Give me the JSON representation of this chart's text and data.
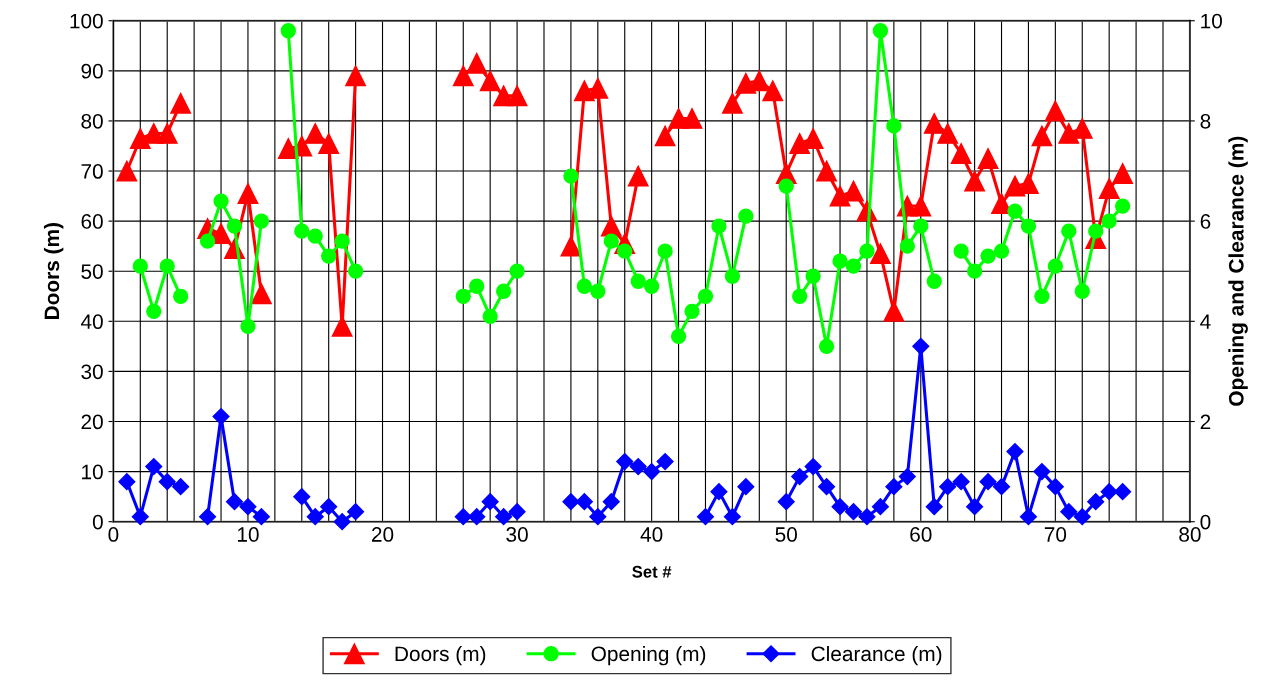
{
  "chart_data": {
    "type": "line",
    "xlabel": "Set #",
    "ylabel": "Doors (m)",
    "y2label": "Opening and Clearance (m)",
    "x": [
      1,
      2,
      3,
      4,
      5,
      6,
      7,
      8,
      9,
      10,
      11,
      12,
      13,
      14,
      15,
      16,
      17,
      18,
      19,
      20,
      21,
      22,
      23,
      24,
      25,
      26,
      27,
      28,
      29,
      30,
      31,
      32,
      33,
      34,
      35,
      36,
      37,
      38,
      39,
      40,
      41,
      42,
      43,
      44,
      45,
      46,
      47,
      48,
      49,
      50,
      51,
      52,
      53,
      54,
      55,
      56,
      57,
      58,
      59,
      60,
      61,
      62,
      63,
      64,
      65,
      66,
      67,
      68,
      69,
      70,
      71,
      72,
      73,
      74,
      75
    ],
    "series": [
      {
        "name": "Doors (m)",
        "color": "#ff0000",
        "marker": "triangle",
        "values": [
          70,
          76.5,
          77.5,
          77.5,
          83.5,
          null,
          58.5,
          57.5,
          54.5,
          65.5,
          45.5,
          null,
          74.5,
          75,
          77.5,
          75.5,
          39,
          89,
          null,
          null,
          null,
          null,
          null,
          null,
          null,
          89,
          91.5,
          88,
          85,
          85,
          null,
          null,
          null,
          55,
          86,
          86.5,
          59,
          55.5,
          69,
          null,
          77,
          80.5,
          80.5,
          null,
          null,
          83.5,
          87.5,
          88,
          86,
          69.5,
          75.5,
          76.5,
          70,
          65,
          66,
          62,
          53.5,
          42,
          63,
          63,
          79.5,
          77.5,
          73.5,
          68,
          72.5,
          63.5,
          67,
          67.5,
          77,
          82,
          77.5,
          78.5,
          56.5,
          66.5,
          69.5
        ]
      },
      {
        "name": "Opening (m)",
        "color": "#00ff00",
        "marker": "circle",
        "axis": "y2",
        "values": [
          null,
          5.1,
          4.2,
          5.1,
          4.5,
          null,
          5.6,
          6.4,
          5.9,
          3.9,
          6.0,
          null,
          9.8,
          5.8,
          5.7,
          5.3,
          5.6,
          5.0,
          null,
          null,
          null,
          null,
          null,
          null,
          null,
          4.5,
          4.7,
          4.1,
          4.6,
          5.0,
          null,
          null,
          null,
          6.9,
          4.7,
          4.6,
          5.6,
          5.4,
          4.8,
          4.7,
          5.4,
          3.7,
          4.2,
          4.5,
          5.9,
          4.9,
          6.1,
          null,
          null,
          6.7,
          4.5,
          4.9,
          3.5,
          5.2,
          5.1,
          5.4,
          9.8,
          7.9,
          5.5,
          5.9,
          4.8,
          null,
          5.4,
          5.0,
          5.3,
          5.4,
          6.2,
          5.9,
          4.5,
          5.1,
          5.8,
          4.6,
          5.8,
          6.0,
          6.3
        ]
      },
      {
        "name": "Clearance (m)",
        "color": "#0000ff",
        "marker": "diamond",
        "axis": "y2",
        "values": [
          0.8,
          0.1,
          1.1,
          0.8,
          0.7,
          null,
          0.1,
          2.1,
          0.4,
          0.3,
          0.1,
          null,
          null,
          0.5,
          0.1,
          0.3,
          0.0,
          0.2,
          null,
          null,
          null,
          null,
          null,
          null,
          null,
          0.1,
          0.1,
          0.4,
          0.1,
          0.2,
          null,
          null,
          null,
          0.4,
          0.4,
          0.1,
          0.4,
          1.2,
          1.1,
          1.0,
          1.2,
          null,
          null,
          0.1,
          0.6,
          0.1,
          0.7,
          null,
          null,
          0.4,
          0.9,
          1.1,
          0.7,
          0.3,
          0.2,
          0.1,
          0.3,
          0.7,
          0.9,
          3.5,
          0.3,
          0.7,
          0.8,
          0.3,
          0.8,
          0.7,
          1.4,
          0.1,
          1.0,
          0.7,
          0.2,
          0.1,
          0.4,
          0.6,
          0.6
        ]
      }
    ],
    "xlim": [
      0,
      80
    ],
    "xticks": [
      0,
      {
        "value": 2,
        "label": null
      },
      {
        "value": 4,
        "label": null
      },
      {
        "value": 6,
        "label": null
      },
      {
        "value": 8,
        "label": null
      },
      10,
      {
        "value": 12,
        "label": null
      },
      {
        "value": 14,
        "label": null
      },
      {
        "value": 16,
        "label": null
      },
      {
        "value": 18,
        "label": null
      },
      20,
      {
        "value": 22,
        "label": null
      },
      {
        "value": 24,
        "label": null
      },
      {
        "value": 26,
        "label": null
      },
      {
        "value": 28,
        "label": null
      },
      30,
      {
        "value": 32,
        "label": null
      },
      {
        "value": 34,
        "label": null
      },
      {
        "value": 36,
        "label": null
      },
      {
        "value": 38,
        "label": null
      },
      40,
      {
        "value": 42,
        "label": null
      },
      {
        "value": 44,
        "label": null
      },
      {
        "value": 46,
        "label": null
      },
      {
        "value": 48,
        "label": null
      },
      50,
      {
        "value": 52,
        "label": null
      },
      {
        "value": 54,
        "label": null
      },
      {
        "value": 56,
        "label": null
      },
      {
        "value": 58,
        "label": null
      },
      60,
      {
        "value": 62,
        "label": null
      },
      {
        "value": 64,
        "label": null
      },
      {
        "value": 66,
        "label": null
      },
      {
        "value": 68,
        "label": null
      },
      70,
      {
        "value": 72,
        "label": null
      },
      {
        "value": 74,
        "label": null
      },
      {
        "value": 76,
        "label": null
      },
      {
        "value": 78,
        "label": null
      },
      80
    ],
    "ylim": [
      0,
      100
    ],
    "yticks": [
      0,
      10,
      20,
      30,
      40,
      50,
      60,
      70,
      80,
      90,
      100
    ],
    "y2lim": [
      0,
      10
    ],
    "y2ticks": [
      0,
      2,
      4,
      6,
      8,
      10
    ],
    "grid": true,
    "legend": "bottom",
    "line_style": "solid"
  }
}
